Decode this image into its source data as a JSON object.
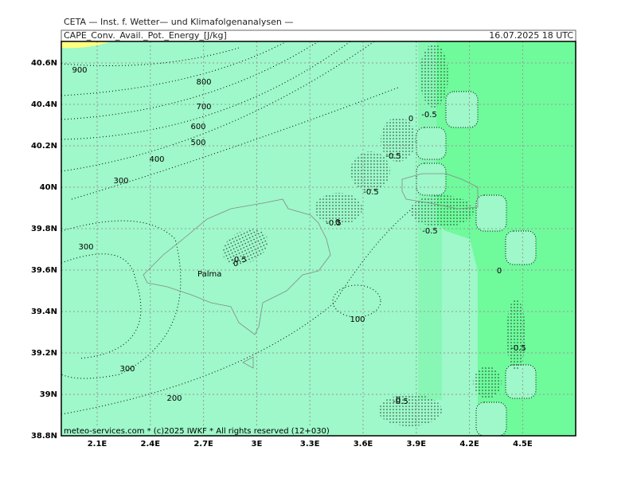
{
  "header": {
    "source": "CETA — Inst. f. Wetter— und Klimafolgenanalysen —",
    "parameter": "CAPE_Conv._Avail._Pot._Energy_[J/kg]",
    "valid_time": "16.07.2025 18 UTC"
  },
  "map": {
    "lat_labels": [
      "40.6N",
      "40.4N",
      "40.2N",
      "40N",
      "39.8N",
      "39.6N",
      "39.4N",
      "39.2N",
      "39N",
      "38.8N"
    ],
    "lon_labels": [
      "2.1E",
      "2.4E",
      "2.7E",
      "3E",
      "3.3E",
      "3.6E",
      "3.9E",
      "4.2E",
      "4.5E"
    ],
    "contour_labels": [
      "900",
      "800",
      "700",
      "600",
      "500",
      "400",
      "300",
      "300",
      "300",
      "200",
      "100",
      "0",
      "-0.5",
      "-0.5",
      "-0.5",
      "-0.5",
      "0",
      "-0.5",
      "0",
      "-0.5",
      "-0.5",
      "0",
      "-0.5",
      "0"
    ],
    "places": [
      "Palma"
    ]
  },
  "footer": "meteo-services.com * (c)2025 IWKF * All rights reserved (12+030)"
}
